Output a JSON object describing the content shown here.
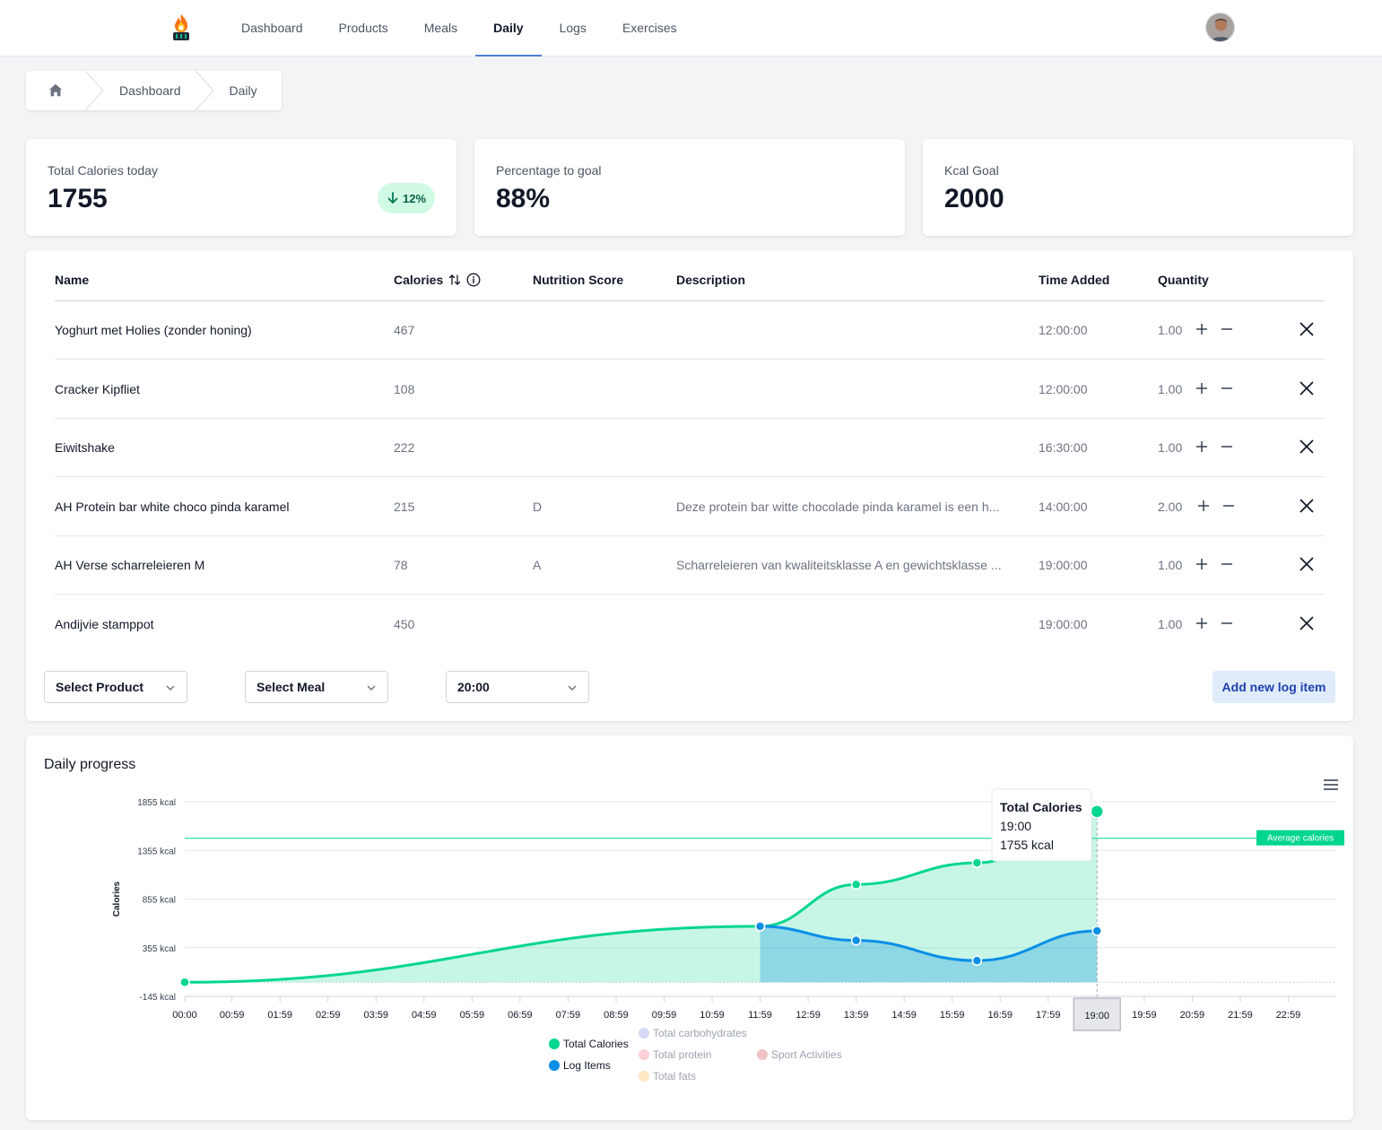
{
  "nav": {
    "items": [
      {
        "label": "Dashboard",
        "active": false
      },
      {
        "label": "Products",
        "active": false
      },
      {
        "label": "Meals",
        "active": false
      },
      {
        "label": "Daily",
        "active": true
      },
      {
        "label": "Logs",
        "active": false
      },
      {
        "label": "Exercises",
        "active": false
      }
    ],
    "logo_icon": "fire-logo-icon",
    "avatar_icon": "user-avatar"
  },
  "breadcrumb": {
    "home_icon": "home-icon",
    "items": [
      "Dashboard",
      "Daily"
    ]
  },
  "stats": [
    {
      "label": "Total Calories today",
      "value": "1755",
      "badge": "12%",
      "badge_icon": "arrow-down-icon",
      "badge_color": "#d1fae5"
    },
    {
      "label": "Percentage to goal",
      "value": "88%"
    },
    {
      "label": "Kcal Goal",
      "value": "2000"
    }
  ],
  "table": {
    "columns": [
      "Name",
      "Calories",
      "Nutrition Score",
      "Description",
      "Time Added",
      "Quantity"
    ],
    "rows": [
      {
        "name": "Yoghurt met Holies (zonder honing)",
        "calories": "467",
        "score": "",
        "description": "",
        "time": "12:00:00",
        "quantity": "1.00"
      },
      {
        "name": "Cracker Kipfliet",
        "calories": "108",
        "score": "",
        "description": "",
        "time": "12:00:00",
        "quantity": "1.00"
      },
      {
        "name": "Eiwitshake",
        "calories": "222",
        "score": "",
        "description": "",
        "time": "16:30:00",
        "quantity": "1.00"
      },
      {
        "name": "AH Protein bar white choco pinda karamel",
        "calories": "215",
        "score": "D",
        "description": "Deze protein bar witte chocolade pinda karamel is een h...",
        "time": "14:00:00",
        "quantity": "2.00"
      },
      {
        "name": "AH Verse scharreleieren M",
        "calories": "78",
        "score": "A",
        "description": "Scharreleieren van kwaliteitsklasse A en gewichtsklasse ...",
        "time": "19:00:00",
        "quantity": "1.00"
      },
      {
        "name": "Andijvie stamppot",
        "calories": "450",
        "score": "",
        "description": "",
        "time": "19:00:00",
        "quantity": "1.00"
      }
    ]
  },
  "controls": {
    "product_select": "Select Product",
    "meal_select": "Select Meal",
    "time_select": "20:00",
    "add_button": "Add new log item"
  },
  "chart_data": {
    "type": "area",
    "title": "Daily progress",
    "ylabel": "Calories",
    "yticks": [
      "1855 kcal",
      "1355 kcal",
      "855 kcal",
      "355 kcal",
      "-145 kcal"
    ],
    "ylim": [
      -145,
      1855
    ],
    "x_ticks": [
      "00:00",
      "00:59",
      "01:59",
      "02:59",
      "03:59",
      "04:59",
      "05:59",
      "06:59",
      "07:59",
      "08:59",
      "09:59",
      "10:59",
      "11:59",
      "12:59",
      "13:59",
      "14:59",
      "15:59",
      "16:59",
      "17:59",
      "19:00",
      "19:59",
      "20:59",
      "21:59",
      "22:59"
    ],
    "series": [
      {
        "name": "Total Calories",
        "color": "#00d68f",
        "x": [
          "00:00",
          "11:59",
          "13:59",
          "16:30",
          "19:00"
        ],
        "values": [
          0,
          575,
          1005,
          1227,
          1755
        ]
      },
      {
        "name": "Log Items",
        "color": "#0a8fe6",
        "x": [
          "11:59",
          "13:59",
          "16:30",
          "19:00"
        ],
        "values": [
          575,
          430,
          222,
          528
        ]
      }
    ],
    "annotation": {
      "label": "Average calories",
      "value": 1480
    },
    "tooltip": {
      "title": "Total Calories",
      "time": "19:00",
      "value": "1755 kcal"
    },
    "crosshair_label": "19:00",
    "legend": [
      {
        "name": "Total Calories",
        "color": "#00d68f",
        "enabled": true
      },
      {
        "name": "Log Items",
        "color": "#0a8fe6",
        "enabled": true
      },
      {
        "name": "Total carbohydrates",
        "color": "#d6d9f5",
        "enabled": false
      },
      {
        "name": "Total protein",
        "color": "#fbd1d9",
        "enabled": false
      },
      {
        "name": "Total fats",
        "color": "#fde9c4",
        "enabled": false
      },
      {
        "name": "Sport Activities",
        "color": "#efc3c8",
        "enabled": false
      }
    ],
    "legend_position": "bottom-center",
    "grid": true
  }
}
